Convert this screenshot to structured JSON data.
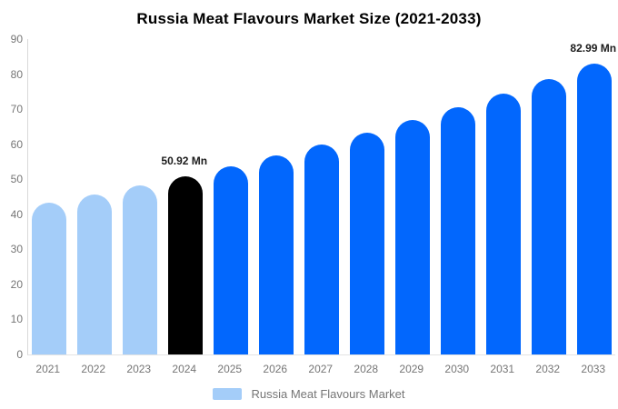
{
  "title": "Russia Meat Flavours Market Size (2021-2033)",
  "legend": {
    "label": "Russia Meat Flavours Market",
    "swatch_color": "#a4cdf9"
  },
  "colors": {
    "light_blue": "#a4cdf9",
    "bright_blue": "#0267fd",
    "highlight_black": "#000000",
    "axis_text": "#757575",
    "axis_line": "#d9d9d9",
    "baseline": "#e3e3e3",
    "data_label_text": "#1b1b1b",
    "title_text": "#000000",
    "background": "#ffffff"
  },
  "chart_data": {
    "type": "bar",
    "title": "Russia Meat Flavours Market Size (2021-2033)",
    "unit": "Mn",
    "categories": [
      "2021",
      "2022",
      "2023",
      "2024",
      "2025",
      "2026",
      "2027",
      "2028",
      "2029",
      "2030",
      "2031",
      "2032",
      "2033"
    ],
    "values": [
      43.26,
      45.68,
      48.23,
      50.92,
      53.76,
      56.76,
      59.93,
      63.27,
      66.8,
      70.53,
      74.47,
      78.62,
      82.99
    ],
    "bar_colors": [
      "#a4cdf9",
      "#a4cdf9",
      "#a4cdf9",
      "#000000",
      "#0267fd",
      "#0267fd",
      "#0267fd",
      "#0267fd",
      "#0267fd",
      "#0267fd",
      "#0267fd",
      "#0267fd",
      "#0267fd"
    ],
    "data_labels": {
      "2024": "50.92 Mn",
      "2033": "82.99 Mn"
    },
    "xlabel": "",
    "ylabel": "",
    "ylim": [
      0,
      90
    ],
    "yticks": [
      0,
      10,
      20,
      30,
      40,
      50,
      60,
      70,
      80,
      90
    ],
    "grid": false,
    "legend_position": "bottom",
    "legend_entries": [
      "Russia Meat Flavours Market"
    ]
  }
}
